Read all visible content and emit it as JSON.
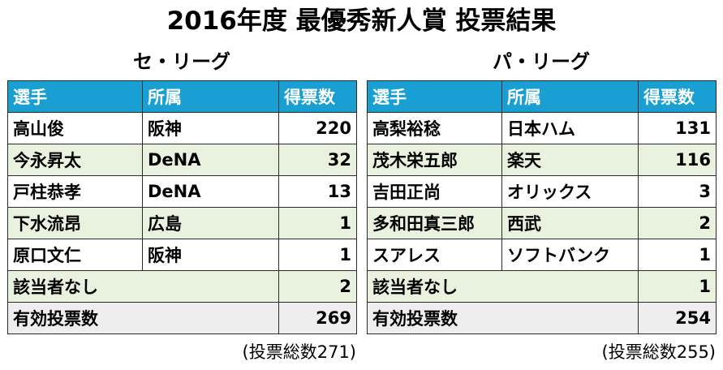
{
  "title": "2016年度 最優秀新人賞 投票結果",
  "leagues": [
    {
      "name": "セ・リーグ",
      "headers": [
        "選手",
        "所属",
        "得票数"
      ],
      "rows": [
        {
          "player": "高山俊",
          "team": "阪神",
          "votes": "220"
        },
        {
          "player": "今永昇太",
          "team": "DeNA",
          "votes": "32"
        },
        {
          "player": "戸柱恭孝",
          "team": "DeNA",
          "votes": "13"
        },
        {
          "player": "下水流昂",
          "team": "広島",
          "votes": "1"
        },
        {
          "player": "原口文仁",
          "team": "阪神",
          "votes": "1"
        }
      ],
      "none_label": "該当者なし",
      "none_votes": "2",
      "valid_label": "有効投票数",
      "valid_votes": "269",
      "total_note": "(投票総数271)"
    },
    {
      "name": "パ・リーグ",
      "headers": [
        "選手",
        "所属",
        "得票数"
      ],
      "rows": [
        {
          "player": "高梨裕稔",
          "team": "日本ハム",
          "votes": "131"
        },
        {
          "player": "茂木栄五郎",
          "team": "楽天",
          "votes": "116"
        },
        {
          "player": "吉田正尚",
          "team": "オリックス",
          "votes": "3"
        },
        {
          "player": "多和田真三郎",
          "team": "西武",
          "votes": "2"
        },
        {
          "player": "スアレス",
          "team": "ソフトバンク",
          "votes": "1"
        }
      ],
      "none_label": "該当者なし",
      "none_votes": "1",
      "valid_label": "有効投票数",
      "valid_votes": "254",
      "total_note": "(投票総数255)"
    }
  ]
}
